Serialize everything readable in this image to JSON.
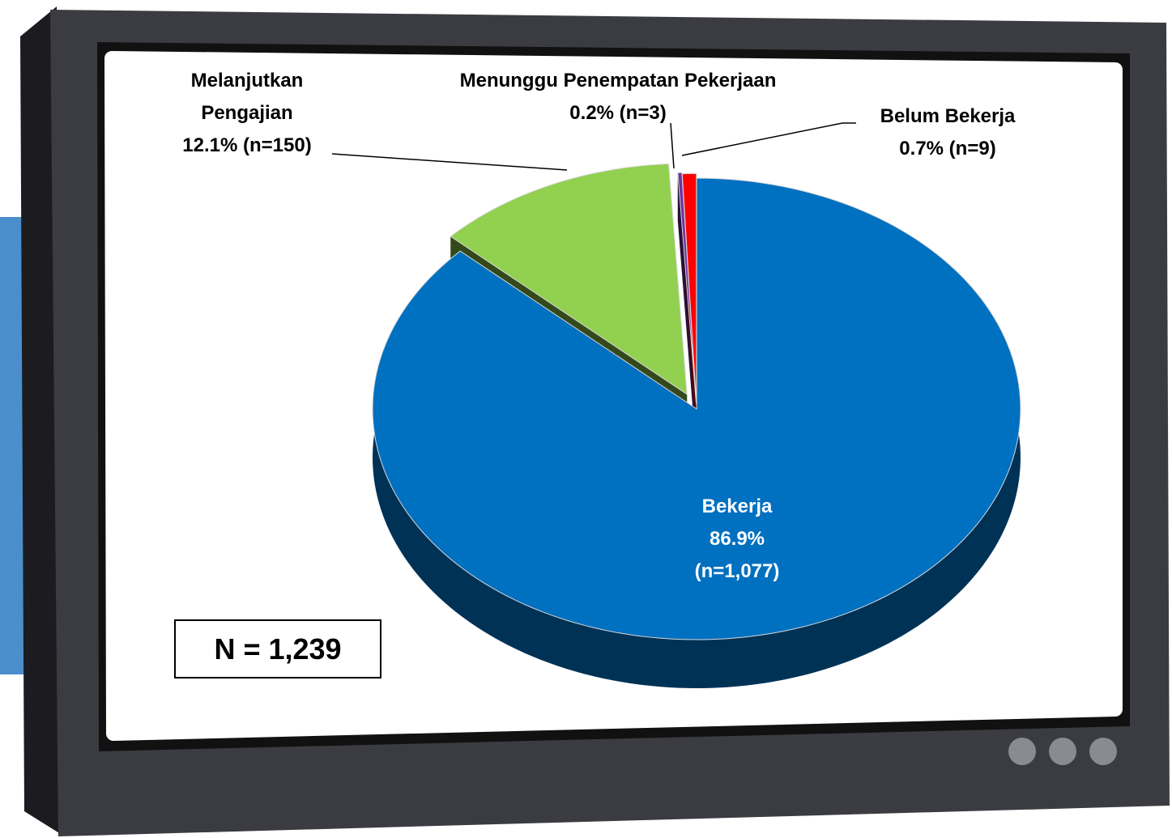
{
  "chart_data": {
    "type": "pie",
    "categories": [
      "Bekerja",
      "Melanjutkan Pengajian",
      "Menunggu Penempatan Pekerjaan",
      "Belum Bekerja"
    ],
    "values": [
      86.9,
      12.1,
      0.2,
      0.7
    ],
    "value_labels": [
      "86.9%",
      "12.1%",
      "0.2%",
      "0.7%"
    ],
    "counts": [
      1077,
      150,
      3,
      9
    ],
    "count_labels": [
      "(n=1,077)",
      "(n=150)",
      "(n=3)",
      "(n=9)"
    ],
    "colors": [
      "#0070c0",
      "#92d050",
      "#7030a0",
      "#ff0000"
    ],
    "annotation": "N = 1,239"
  }
}
